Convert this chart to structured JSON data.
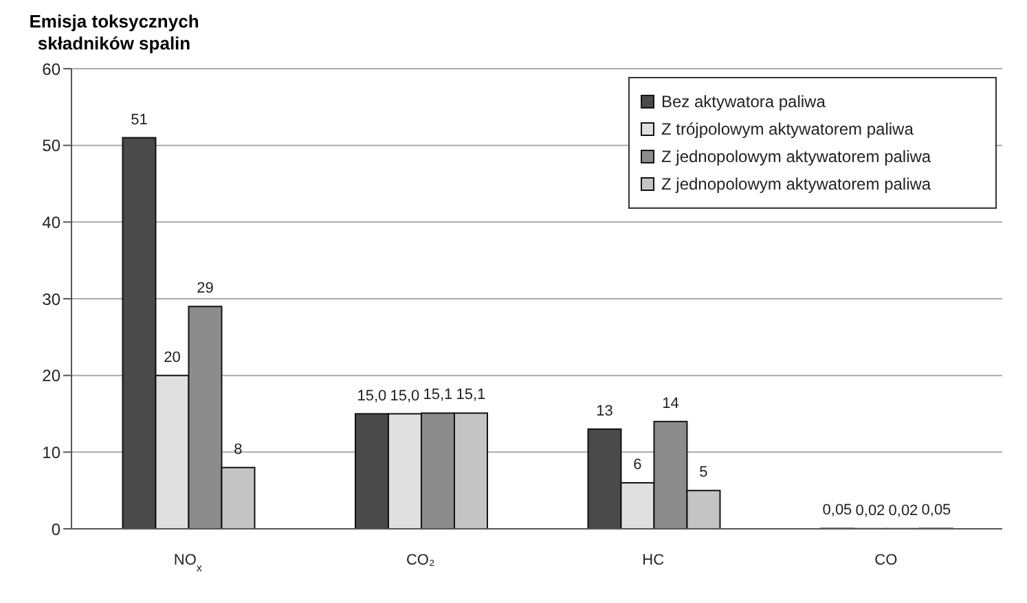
{
  "chart_data": {
    "type": "bar",
    "ylabel": "Emisja toksycznych składników spalin",
    "categories": [
      "NO$_{x}$",
      "CO₂",
      "HC",
      "CO"
    ],
    "series": [
      {
        "name": "Bez aktywatora paliwa",
        "color": "#4a4a4a",
        "values": [
          51,
          15.0,
          13,
          0.05
        ],
        "value_labels": [
          "51",
          "15,0",
          "13",
          "0,05"
        ]
      },
      {
        "name": "Z trójpolowym aktywatorem paliwa",
        "color": "#e0e0e0",
        "values": [
          20,
          15.0,
          6,
          0.02
        ],
        "value_labels": [
          "20",
          "15,0",
          "6",
          "0,02"
        ]
      },
      {
        "name": "Z jednopolowym aktywatorem paliwa",
        "color": "#8c8c8c",
        "values": [
          29,
          15.1,
          14,
          0.02
        ],
        "value_labels": [
          "29",
          "15,1",
          "14",
          "0,02"
        ]
      },
      {
        "name": "Z jednopolowym aktywatorem paliwa",
        "color": "#c4c4c4",
        "values": [
          8,
          15.1,
          5,
          0.05
        ],
        "value_labels": [
          "8",
          "15,1",
          "5",
          "0,05"
        ]
      }
    ],
    "ylim": [
      0,
      60
    ],
    "yticks": [
      0,
      10,
      20,
      30,
      40,
      50,
      60
    ],
    "grid": "y",
    "legend": "top right"
  }
}
